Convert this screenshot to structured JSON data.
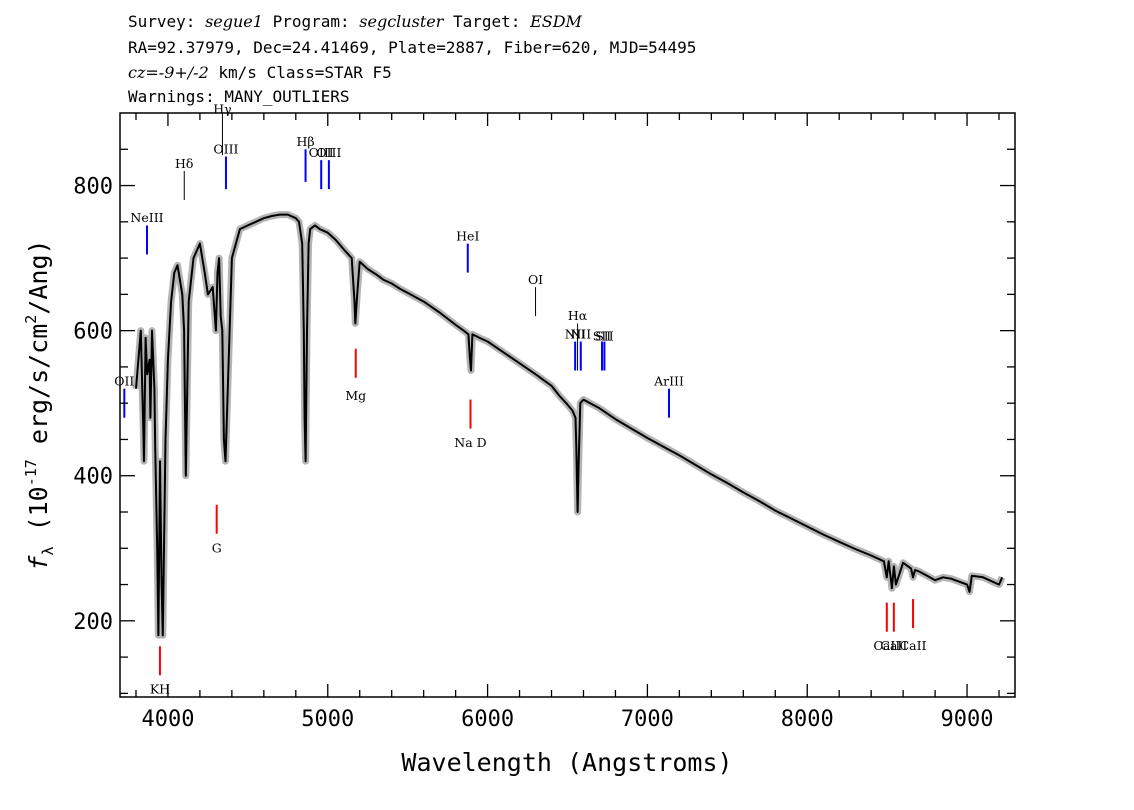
{
  "header": {
    "survey_label": "Survey:",
    "survey": "segue1",
    "program_label": "Program:",
    "program": "segcluster",
    "target_label": "Target:",
    "target": "ESDM",
    "line2": "RA=92.37979, Dec=24.41469, Plate=2887, Fiber=620, MJD=54495",
    "cz": "cz=-9+/-2",
    "cz_rest": " km/s Class=STAR F5",
    "warnings": "Warnings: MANY_OUTLIERS"
  },
  "colors": {
    "spectrum": "#000000",
    "error_band": "#b4b4b4",
    "emission": "#0000ff",
    "absorption": "#ff0000",
    "other_line": "#000000"
  },
  "chart_data": {
    "type": "line",
    "title": "",
    "xlabel": "Wavelength (Angstroms)",
    "ylabel": "f_λ (10^-17 erg/s/cm^2/Ang)",
    "xlim": [
      3700,
      9300
    ],
    "ylim": [
      95,
      900
    ],
    "xticks": [
      4000,
      5000,
      6000,
      7000,
      8000,
      9000
    ],
    "yticks": [
      200,
      400,
      600,
      800
    ],
    "grid": false,
    "legend": "none",
    "series": [
      {
        "x": [
          3800,
          3830,
          3845,
          3850,
          3860,
          3870,
          3885,
          3890,
          3900,
          3915,
          3920,
          3933,
          3940,
          3950,
          3960,
          3968,
          3975,
          3985,
          4000,
          4020,
          4040,
          4060,
          4090,
          4101,
          4112,
          4130,
          4160,
          4200,
          4230,
          4250,
          4280,
          4300,
          4310,
          4320,
          4330,
          4340,
          4350,
          4360,
          4400,
          4450,
          4500,
          4550,
          4600,
          4650,
          4700,
          4750,
          4800,
          4820,
          4840,
          4850,
          4855,
          4861,
          4870,
          4880,
          4890,
          4920,
          4950,
          5000,
          5050,
          5100,
          5150,
          5167,
          5172,
          5184,
          5200,
          5250,
          5300,
          5350,
          5400,
          5450,
          5500,
          5550,
          5600,
          5700,
          5800,
          5850,
          5880,
          5890,
          5896,
          5905,
          5950,
          6000,
          6100,
          6200,
          6300,
          6400,
          6450,
          6500,
          6530,
          6550,
          6555,
          6563,
          6570,
          6580,
          6600,
          6700,
          6800,
          6900,
          7000,
          7100,
          7200,
          7300,
          7400,
          7500,
          7600,
          7700,
          7800,
          7900,
          8000,
          8100,
          8200,
          8300,
          8400,
          8480,
          8498,
          8510,
          8530,
          8542,
          8555,
          8600,
          8650,
          8662,
          8675,
          8700,
          8750,
          8800,
          8850,
          8900,
          9000,
          9015,
          9030,
          9100,
          9200,
          9220
        ],
        "y": [
          520,
          600,
          470,
          420,
          590,
          540,
          560,
          480,
          600,
          520,
          440,
          300,
          180,
          420,
          250,
          180,
          300,
          450,
          560,
          640,
          680,
          690,
          650,
          600,
          400,
          640,
          700,
          720,
          680,
          650,
          660,
          600,
          680,
          700,
          620,
          600,
          450,
          420,
          700,
          740,
          745,
          750,
          755,
          758,
          760,
          760,
          755,
          750,
          720,
          600,
          480,
          420,
          600,
          720,
          740,
          745,
          740,
          735,
          725,
          712,
          700,
          640,
          610,
          650,
          695,
          685,
          678,
          670,
          665,
          658,
          652,
          646,
          640,
          625,
          608,
          600,
          595,
          560,
          545,
          595,
          590,
          585,
          570,
          555,
          540,
          524,
          510,
          498,
          490,
          480,
          440,
          350,
          420,
          500,
          505,
          493,
          478,
          465,
          452,
          440,
          428,
          415,
          402,
          390,
          377,
          365,
          352,
          341,
          330,
          319,
          309,
          299,
          290,
          282,
          260,
          282,
          245,
          275,
          250,
          280,
          272,
          260,
          270,
          268,
          262,
          256,
          260,
          258,
          250,
          240,
          262,
          260,
          250,
          260
        ]
      }
    ],
    "line_markers": [
      {
        "label": "OII",
        "x": 3727,
        "color": "emission",
        "y_line": [
          480,
          520
        ],
        "label_y": 530
      },
      {
        "label": "NeIII",
        "x": 3869,
        "color": "emission",
        "y_line": [
          705,
          745
        ],
        "label_y": 755
      },
      {
        "label": "KH",
        "x": 3950,
        "color": "absorption",
        "y_line": [
          125,
          165
        ],
        "label_y": 105
      },
      {
        "label": "Hδ",
        "x": 4102,
        "color": "other_line",
        "y_line": [
          780,
          820
        ],
        "label_y": 830
      },
      {
        "label": "G",
        "x": 4305,
        "color": "absorption",
        "y_line": [
          320,
          360
        ],
        "label_y": 300
      },
      {
        "label": "Hγ",
        "x": 4341,
        "color": "other_line",
        "y_line": [
          842,
          900
        ],
        "label_y": 905
      },
      {
        "label": "OIII",
        "x": 4363,
        "color": "emission",
        "y_line": [
          795,
          840
        ],
        "label_y": 850
      },
      {
        "label": "Hβ",
        "x": 4861,
        "color": "emission",
        "y_line": [
          805,
          850
        ],
        "label_y": 860
      },
      {
        "label": "OIII",
        "x": 4959,
        "color": "emission",
        "y_line": [
          795,
          835
        ],
        "label_y": 845
      },
      {
        "label": "OIII",
        "x": 5007,
        "color": "emission",
        "y_line": [
          795,
          835
        ],
        "label_y": 845
      },
      {
        "label": "Mg",
        "x": 5175,
        "color": "absorption",
        "y_line": [
          535,
          575
        ],
        "label_y": 510
      },
      {
        "label": "HeI",
        "x": 5876,
        "color": "emission",
        "y_line": [
          680,
          720
        ],
        "label_y": 730
      },
      {
        "label": "Na D",
        "x": 5893,
        "color": "absorption",
        "y_line": [
          465,
          505
        ],
        "label_y": 445
      },
      {
        "label": "OI",
        "x": 6300,
        "color": "other_line",
        "y_line": [
          620,
          660
        ],
        "label_y": 670
      },
      {
        "label": "NII",
        "x": 6548,
        "color": "emission",
        "y_line": [
          545,
          585
        ],
        "label_y": 595
      },
      {
        "label": "Hα",
        "x": 6563,
        "color": "other_line",
        "y_line": [
          545,
          610
        ],
        "label_y": 620
      },
      {
        "label": "NII",
        "x": 6583,
        "color": "emission",
        "y_line": [
          545,
          585
        ],
        "label_y": 595
      },
      {
        "label": "SII",
        "x": 6716,
        "color": "emission",
        "y_line": [
          545,
          585
        ],
        "label_y": 592
      },
      {
        "label": "SII",
        "x": 6731,
        "color": "emission",
        "y_line": [
          545,
          585
        ],
        "label_y": 592
      },
      {
        "label": "ArIII",
        "x": 7135,
        "color": "emission",
        "y_line": [
          480,
          520
        ],
        "label_y": 530
      },
      {
        "label": "CaII",
        "x": 8498,
        "color": "absorption",
        "y_line": [
          185,
          225
        ],
        "label_y": 165
      },
      {
        "label": "CaII",
        "x": 8542,
        "color": "absorption",
        "y_line": [
          185,
          225
        ],
        "label_y": 165
      },
      {
        "label": "CaII",
        "x": 8662,
        "color": "absorption",
        "y_line": [
          190,
          230
        ],
        "label_y": 165
      }
    ]
  }
}
